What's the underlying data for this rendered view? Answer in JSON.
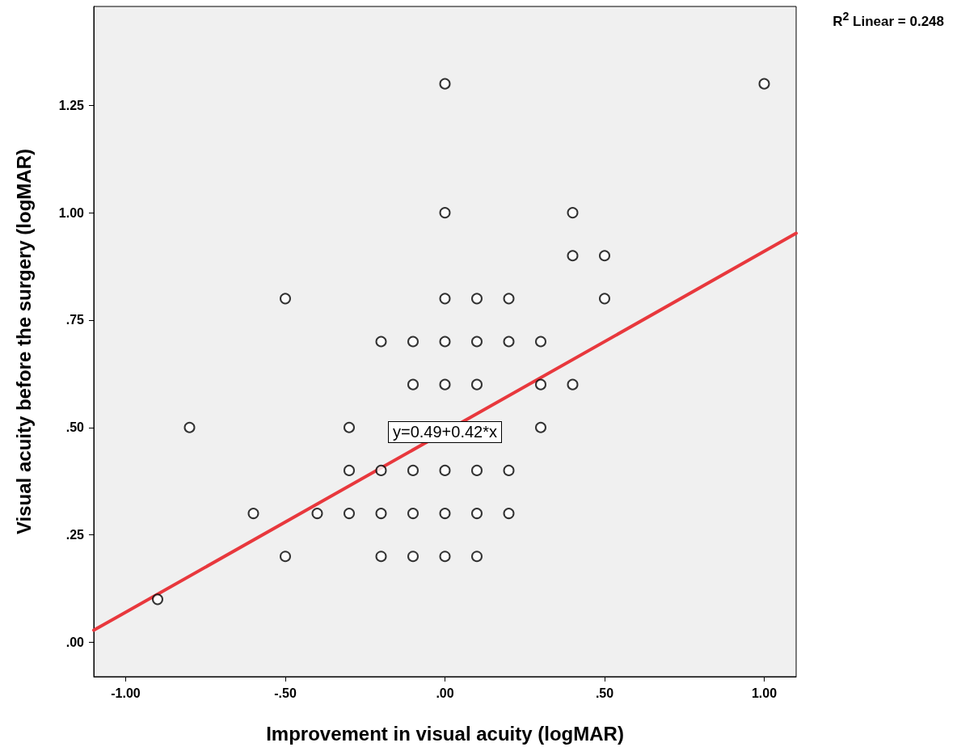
{
  "chart_data": {
    "type": "scatter",
    "xlabel": "Improvement in visual acuity (logMAR)",
    "ylabel": "Visual acuity before the surgery (logMAR)",
    "xlim": [
      -1.1,
      1.1
    ],
    "ylim": [
      -0.08,
      1.48
    ],
    "xticks": [
      {
        "value": -1,
        "label": "-1.00"
      },
      {
        "value": -0.5,
        "label": "-.50"
      },
      {
        "value": 0,
        "label": ".00"
      },
      {
        "value": 0.5,
        "label": ".50"
      },
      {
        "value": 1,
        "label": "1.00"
      }
    ],
    "yticks": [
      {
        "value": 0,
        "label": ".00"
      },
      {
        "value": 0.25,
        "label": ".25"
      },
      {
        "value": 0.5,
        "label": ".50"
      },
      {
        "value": 0.75,
        "label": ".75"
      },
      {
        "value": 1,
        "label": "1.00"
      },
      {
        "value": 1.25,
        "label": "1.25"
      }
    ],
    "grid": false,
    "marker": "circle",
    "series": [
      {
        "color": "#000000",
        "x": [
          0,
          1.0,
          0,
          0.4,
          0.4,
          0.5,
          -0.5,
          0,
          0.1,
          0.2,
          0.5,
          -0.2,
          -0.1,
          0,
          0.1,
          0.2,
          0.3,
          -0.1,
          0,
          0.1,
          0.3,
          0.4,
          -0.8,
          -0.3,
          0.3,
          -0.3,
          -0.2,
          -0.1,
          0,
          0.1,
          0.2,
          -0.6,
          -0.4,
          -0.3,
          -0.2,
          -0.1,
          0,
          0.1,
          0.2,
          -0.5,
          -0.2,
          -0.1,
          0,
          0.1,
          -0.9
        ],
        "values": [
          1.3,
          1.3,
          1.0,
          1.0,
          0.9,
          0.9,
          0.8,
          0.8,
          0.8,
          0.8,
          0.8,
          0.7,
          0.7,
          0.7,
          0.7,
          0.7,
          0.7,
          0.6,
          0.6,
          0.6,
          0.6,
          0.6,
          0.5,
          0.5,
          0.5,
          0.4,
          0.4,
          0.4,
          0.4,
          0.4,
          0.4,
          0.3,
          0.3,
          0.3,
          0.3,
          0.3,
          0.3,
          0.3,
          0.3,
          0.2,
          0.2,
          0.2,
          0.2,
          0.2,
          0.1
        ]
      },
      {
        "type": "line",
        "color": "#e8383d",
        "marker": "none",
        "line_style": "solid",
        "x": [
          -1.1,
          1.1
        ],
        "values": [
          0.028,
          0.952
        ]
      }
    ],
    "annotations": [
      {
        "text": "y=0.49+0.42*x",
        "x": 0,
        "y": 0.49
      },
      "R$^{2}$ Linear = 0.248"
    ]
  }
}
